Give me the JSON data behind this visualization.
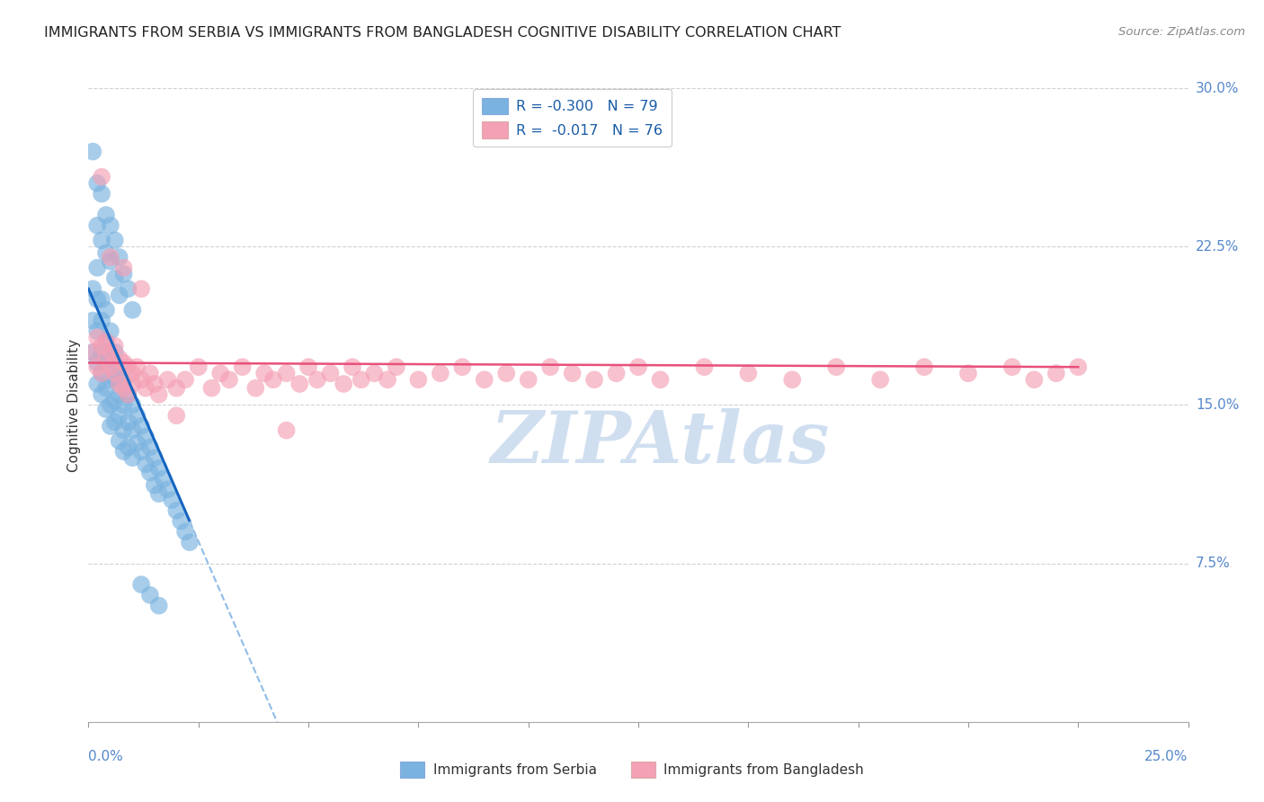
{
  "title": "IMMIGRANTS FROM SERBIA VS IMMIGRANTS FROM BANGLADESH COGNITIVE DISABILITY CORRELATION CHART",
  "source": "Source: ZipAtlas.com",
  "legend_label1": "R = -0.300   N = 79",
  "legend_label2": "R =  -0.017   N = 76",
  "legend_series1": "Immigrants from Serbia",
  "legend_series2": "Immigrants from Bangladesh",
  "serbia_color": "#7ab3e0",
  "bangladesh_color": "#f4a0b5",
  "trendline_serbia_color": "#1565c0",
  "trendline_bangladesh_color": "#e8507a",
  "trendline_ext_color": "#90bce8",
  "watermark_color": "#d0dff0",
  "background_color": "#ffffff",
  "grid_color": "#cccccc",
  "xlim": [
    0.0,
    0.25
  ],
  "ylim": [
    0.0,
    0.3
  ],
  "serbia_x": [
    0.001,
    0.001,
    0.001,
    0.002,
    0.002,
    0.002,
    0.002,
    0.002,
    0.003,
    0.003,
    0.003,
    0.003,
    0.003,
    0.004,
    0.004,
    0.004,
    0.004,
    0.004,
    0.005,
    0.005,
    0.005,
    0.005,
    0.005,
    0.006,
    0.006,
    0.006,
    0.006,
    0.007,
    0.007,
    0.007,
    0.007,
    0.008,
    0.008,
    0.008,
    0.008,
    0.009,
    0.009,
    0.009,
    0.01,
    0.01,
    0.01,
    0.011,
    0.011,
    0.012,
    0.012,
    0.013,
    0.013,
    0.014,
    0.014,
    0.015,
    0.015,
    0.016,
    0.016,
    0.017,
    0.018,
    0.019,
    0.02,
    0.021,
    0.022,
    0.023,
    0.001,
    0.002,
    0.002,
    0.003,
    0.003,
    0.004,
    0.004,
    0.005,
    0.005,
    0.006,
    0.006,
    0.007,
    0.007,
    0.008,
    0.009,
    0.01,
    0.012,
    0.014,
    0.016
  ],
  "serbia_y": [
    0.205,
    0.19,
    0.175,
    0.215,
    0.2,
    0.185,
    0.17,
    0.16,
    0.2,
    0.19,
    0.175,
    0.165,
    0.155,
    0.195,
    0.18,
    0.17,
    0.158,
    0.148,
    0.185,
    0.172,
    0.162,
    0.15,
    0.14,
    0.175,
    0.163,
    0.152,
    0.142,
    0.168,
    0.155,
    0.145,
    0.133,
    0.162,
    0.15,
    0.138,
    0.128,
    0.155,
    0.142,
    0.13,
    0.15,
    0.138,
    0.125,
    0.145,
    0.132,
    0.14,
    0.128,
    0.135,
    0.122,
    0.13,
    0.118,
    0.125,
    0.112,
    0.12,
    0.108,
    0.115,
    0.11,
    0.105,
    0.1,
    0.095,
    0.09,
    0.085,
    0.27,
    0.255,
    0.235,
    0.25,
    0.228,
    0.24,
    0.222,
    0.235,
    0.218,
    0.228,
    0.21,
    0.22,
    0.202,
    0.212,
    0.205,
    0.195,
    0.065,
    0.06,
    0.055
  ],
  "bangladesh_x": [
    0.001,
    0.002,
    0.002,
    0.003,
    0.003,
    0.004,
    0.004,
    0.005,
    0.005,
    0.006,
    0.006,
    0.007,
    0.007,
    0.008,
    0.008,
    0.009,
    0.009,
    0.01,
    0.01,
    0.011,
    0.012,
    0.013,
    0.014,
    0.015,
    0.016,
    0.018,
    0.02,
    0.022,
    0.025,
    0.028,
    0.03,
    0.032,
    0.035,
    0.038,
    0.04,
    0.042,
    0.045,
    0.048,
    0.05,
    0.052,
    0.055,
    0.058,
    0.06,
    0.062,
    0.065,
    0.068,
    0.07,
    0.075,
    0.08,
    0.085,
    0.09,
    0.095,
    0.1,
    0.105,
    0.11,
    0.115,
    0.12,
    0.125,
    0.13,
    0.14,
    0.15,
    0.16,
    0.17,
    0.18,
    0.19,
    0.2,
    0.21,
    0.215,
    0.22,
    0.225,
    0.003,
    0.005,
    0.008,
    0.012,
    0.02,
    0.045
  ],
  "bangladesh_y": [
    0.175,
    0.182,
    0.168,
    0.178,
    0.165,
    0.18,
    0.172,
    0.175,
    0.168,
    0.178,
    0.165,
    0.172,
    0.16,
    0.17,
    0.158,
    0.168,
    0.155,
    0.165,
    0.16,
    0.168,
    0.162,
    0.158,
    0.165,
    0.16,
    0.155,
    0.162,
    0.158,
    0.162,
    0.168,
    0.158,
    0.165,
    0.162,
    0.168,
    0.158,
    0.165,
    0.162,
    0.165,
    0.16,
    0.168,
    0.162,
    0.165,
    0.16,
    0.168,
    0.162,
    0.165,
    0.162,
    0.168,
    0.162,
    0.165,
    0.168,
    0.162,
    0.165,
    0.162,
    0.168,
    0.165,
    0.162,
    0.165,
    0.168,
    0.162,
    0.168,
    0.165,
    0.162,
    0.168,
    0.162,
    0.168,
    0.165,
    0.168,
    0.162,
    0.165,
    0.168,
    0.258,
    0.22,
    0.215,
    0.205,
    0.145,
    0.138
  ],
  "serbia_trendline_x0": 0.0,
  "serbia_trendline_y0": 0.205,
  "serbia_trendline_x1": 0.023,
  "serbia_trendline_y1": 0.095,
  "serbia_trendline_xdash_end": 0.25,
  "bangladesh_trendline_x0": 0.0,
  "bangladesh_trendline_y0": 0.17,
  "bangladesh_trendline_x1": 0.225,
  "bangladesh_trendline_y1": 0.168
}
